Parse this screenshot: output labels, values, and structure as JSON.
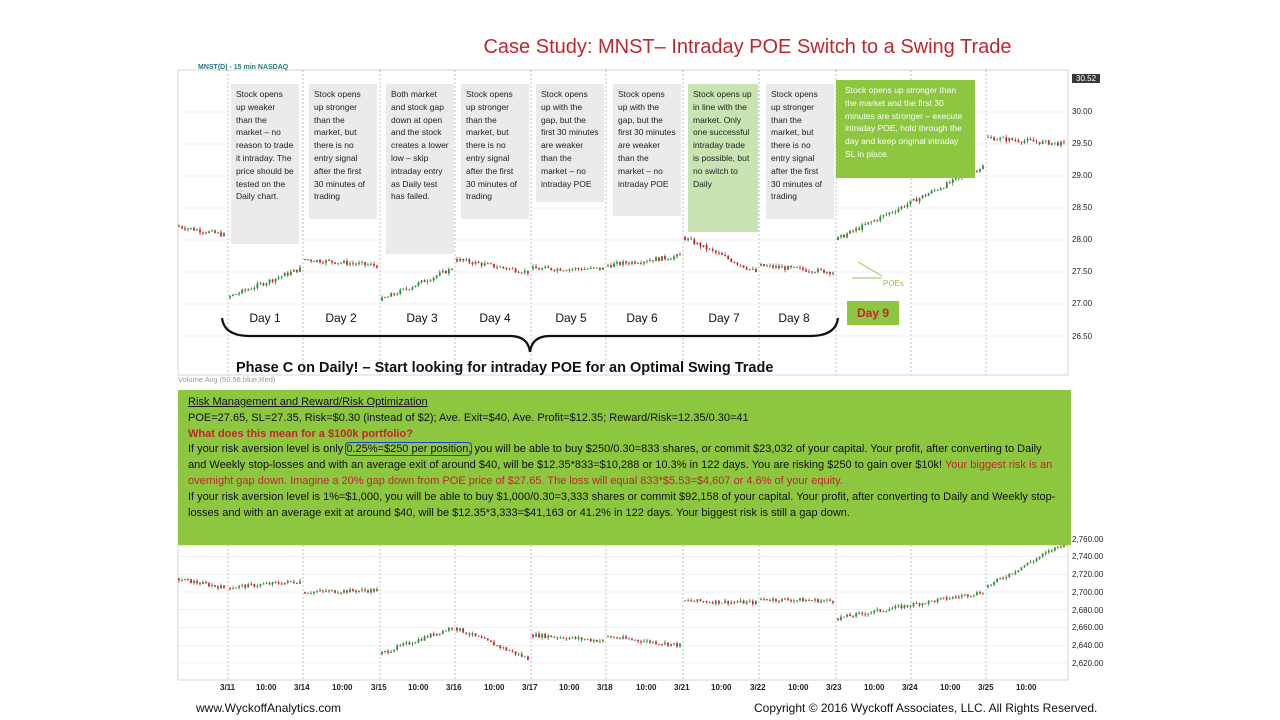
{
  "title": "Case Study: MNST– Intraday POE Switch to a Swing Trade",
  "ticker": "MNST(D) - 15 min  NASDAQ",
  "notes": [
    "Stock opens up weaker than the market – no reason to trade it intraday. The price should be tested on the Daily chart.",
    "Stock opens up stronger than the market, but there is no entry signal after the first 30 minutes of trading",
    "Both market and stock gap down at open and the stock creates a lower low – skip intraday entry as Daily test has failed.",
    "Stock opens up stronger than the market, but there is no entry signal after the first 30 minutes of trading",
    "Stock opens up with the gap, but the first 30 minutes are weaker than the market – no intraday POE",
    "Stock opens up with the gap, but the first 30 minutes are weaker than the market – no intraday POE",
    "Stock opens up in line with the market. Only one successful intraday trade is possible, but no switch to Daily",
    "Stock opens up stronger than the market, but there is no entry signal after the first 30 minutes of trading",
    "Stock opens up stronger than the market and the first 30 minutes are stronger – execute intraday POE, hold through the day and keep original intraday SL in place."
  ],
  "days": [
    "Day 1",
    "Day 2",
    "Day 3",
    "Day 4",
    "Day 5",
    "Day 6",
    "Day 7",
    "Day 8",
    "Day 9"
  ],
  "poes_label": "POEs",
  "phase_text": "Phase C on Daily! – Start looking for intraday POE for an Optimal Swing Trade",
  "volume_label": "Volume Avg (50.56,blue,Red)",
  "current_price": "30.52",
  "panel": {
    "heading": "Risk Management and Reward/Risk Optimization",
    "line1": "POE=27.65, SL=27.35, Risk=$0.30 (instead of $2); Ave. Exit=$40, Ave. Profit=$12.35; Reward/Risk=12.35/0.30=41",
    "question": "What does this mean for a $100k portfolio?",
    "p1a": "If your risk aversion level is only ",
    "p1b": "0.25%=$250 per position,",
    "p1c": " you will be able to buy $250/0.30=833 shares, or commit $23,032 of your capital. Your profit, after converting to Daily and Weekly stop-losses and with an average exit of around $40, will be $12.35*833=$10,288 or 10.3% in 122 days. You are risking $250 to gain over $10k! ",
    "p1d": "Your biggest risk is an overnight gap down. Imagine a 20% gap down from POE price of $27.65. The loss will equal 833*$5.53=$4,607 or 4.6% of your equity.",
    "p2": "If your risk aversion level is 1%=$1,000, you will be able to buy $1,000/0.30=3,333 shares or commit $92,158 of your capital. Your profit, after converting to Daily and Weekly stop-losses and with an average exit at around $40, will be $12.35*3,333=$41,163 or 41.2% in 122 days. Your biggest risk is still a gap down."
  },
  "footer_left": "www.WyckoffAnalytics.com",
  "footer_right": "Copyright © 2016 Wyckoff Associates, LLC. All Rights Reserved.",
  "colors": {
    "title": "#c0272d",
    "panel": "#8dc63f",
    "up": "#2e8b3a",
    "down": "#c0272d"
  },
  "chart_data": [
    {
      "type": "candlestick",
      "title": "MNST(D) - 15 min  NASDAQ",
      "y_ticks": [
        "26.50",
        "27.00",
        "27.50",
        "28.00",
        "28.50",
        "29.00",
        "29.50",
        "30.00"
      ],
      "ylim": [
        26.3,
        30.6
      ],
      "sessions": [
        {
          "day": "pre",
          "open": 28.22,
          "close": 28.08
        },
        {
          "day": "Day 1",
          "open": 27.1,
          "close": 27.55
        },
        {
          "day": "Day 2",
          "open": 27.7,
          "close": 27.6
        },
        {
          "day": "Day 3",
          "open": 27.05,
          "close": 27.55
        },
        {
          "day": "Day 4",
          "open": 27.7,
          "close": 27.5
        },
        {
          "day": "Day 5",
          "open": 27.55,
          "close": 27.55
        },
        {
          "day": "Day 6",
          "open": 27.6,
          "close": 27.75
        },
        {
          "day": "Day 7",
          "open": 28.05,
          "close": 27.5
        },
        {
          "day": "Day 8",
          "open": 27.6,
          "close": 27.5
        },
        {
          "day": "Day 9",
          "open": 28.0,
          "close": 29.15
        },
        {
          "day": "post",
          "open": 29.6,
          "close": 29.5
        }
      ],
      "poe": 27.65,
      "stop_loss": 27.35
    },
    {
      "type": "line",
      "title": "",
      "y_ticks": [
        "2,620.00",
        "2,640.00",
        "2,660.00",
        "2,680.00",
        "2,700.00",
        "2,720.00",
        "2,740.00",
        "2,760.00"
      ],
      "x_ticks": [
        "3/11",
        "10:00",
        "3/14",
        "10:00",
        "3/15",
        "10:00",
        "3/16",
        "10:00",
        "3/17",
        "10:00",
        "3/18",
        "10:00",
        "3/21",
        "10:00",
        "3/22",
        "10:00",
        "3/23",
        "10:00",
        "3/24",
        "10:00",
        "3/25",
        "10:00"
      ],
      "ylim": [
        2610,
        2770
      ],
      "sessions": [
        {
          "open": 2715,
          "close": 2705
        },
        {
          "open": 2705,
          "close": 2712
        },
        {
          "open": 2700,
          "close": 2702
        },
        {
          "open": 2630,
          "close": 2660
        },
        {
          "open": 2660,
          "close": 2625
        },
        {
          "open": 2652,
          "close": 2645
        },
        {
          "open": 2650,
          "close": 2640
        },
        {
          "open": 2690,
          "close": 2688
        },
        {
          "open": 2692,
          "close": 2690
        },
        {
          "open": 2670,
          "close": 2700
        },
        {
          "open": 2705,
          "close": 2755
        }
      ]
    }
  ]
}
